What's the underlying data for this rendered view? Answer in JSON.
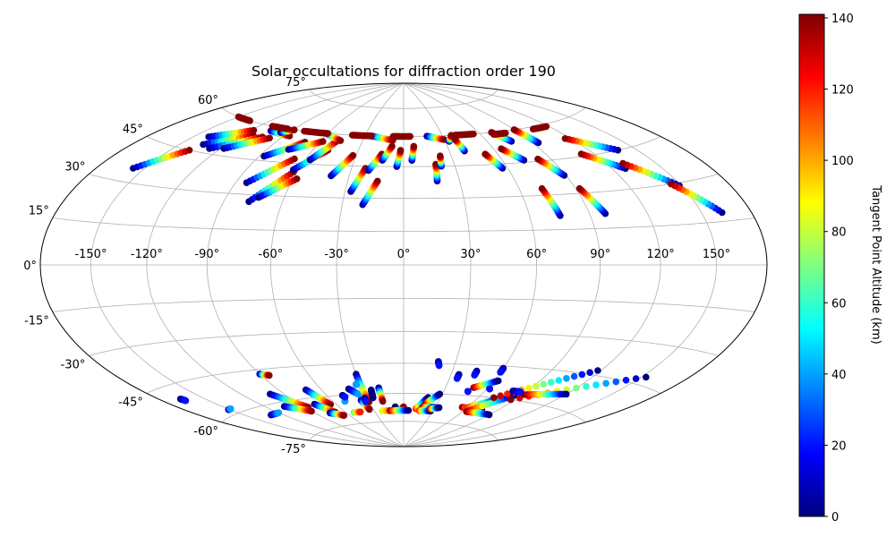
{
  "chart_data": {
    "type": "scatter",
    "projection": "hammer",
    "title": "Solar occultations for diffraction order 190",
    "grid": true,
    "x_ticks": [
      -150,
      -120,
      -90,
      -60,
      -30,
      0,
      30,
      60,
      90,
      120,
      150
    ],
    "x_tick_labels": [
      "-150°",
      "-120°",
      "-90°",
      "-60°",
      "-30°",
      "0°",
      "30°",
      "60°",
      "90°",
      "120°",
      "150°"
    ],
    "y_ticks": [
      75,
      60,
      45,
      30,
      15,
      0,
      -15,
      -30,
      -45,
      -60,
      -75
    ],
    "y_tick_labels": [
      "75°",
      "60°",
      "45°",
      "30°",
      "15°",
      "0°",
      "-15°",
      "-30°",
      "-45°",
      "-60°",
      "-75°"
    ],
    "colorbar": {
      "label": "Tangent Point Altitude (km)",
      "range": [
        0,
        141
      ],
      "ticks": [
        0,
        20,
        40,
        60,
        80,
        100,
        120,
        140
      ],
      "tick_labels": [
        "0",
        "20",
        "40",
        "60",
        "80",
        "100",
        "120",
        "140"
      ],
      "colormap": "jet"
    },
    "track_units": "lon_deg, lat_deg, altitude_km at each end",
    "tracks": [
      [
        -157,
        35,
        0,
        -138,
        45,
        140
      ],
      [
        -140,
        51,
        0,
        -118,
        57,
        140
      ],
      [
        -135,
        48,
        0,
        -112,
        55,
        140
      ],
      [
        -127,
        47,
        0,
        -104,
        55,
        140
      ],
      [
        -118,
        48,
        0,
        -98,
        55,
        140
      ],
      [
        -105,
        58,
        0,
        -86,
        57,
        140
      ],
      [
        -96,
        58,
        0,
        -89,
        60,
        140
      ],
      [
        -87,
        47,
        0,
        -70,
        55,
        140
      ],
      [
        -84,
        35,
        0,
        -67,
        47,
        140
      ],
      [
        -77,
        27,
        0,
        -62,
        41,
        140
      ],
      [
        -73,
        29,
        0,
        -58,
        38,
        140
      ],
      [
        -76,
        51,
        0,
        -58,
        56,
        140
      ],
      [
        -63,
        42,
        0,
        -50,
        52,
        140
      ],
      [
        -57,
        47,
        0,
        -48,
        57,
        140
      ],
      [
        -61,
        60,
        0,
        -46,
        57,
        140
      ],
      [
        -40,
        40,
        0,
        -32,
        50,
        140
      ],
      [
        -27,
        33,
        0,
        -22,
        44,
        140
      ],
      [
        -20,
        27,
        0,
        -14,
        38,
        140
      ],
      [
        -20,
        43,
        0,
        -14,
        51,
        140
      ],
      [
        -13,
        48,
        0,
        -8,
        55,
        140
      ],
      [
        -4,
        45,
        0,
        -2,
        53,
        140
      ],
      [
        5,
        48,
        0,
        7,
        55,
        140
      ],
      [
        18,
        38,
        0,
        19,
        46,
        140
      ],
      [
        22,
        45,
        0,
        23,
        50,
        140
      ],
      [
        -25,
        60,
        0,
        -8,
        58,
        140
      ],
      [
        18,
        60,
        0,
        30,
        58,
        140
      ],
      [
        33,
        57,
        0,
        37,
        60,
        140
      ],
      [
        40,
        52,
        0,
        38,
        58,
        140
      ],
      [
        57,
        43,
        0,
        52,
        50,
        140
      ],
      [
        73,
        46,
        0,
        65,
        52,
        140
      ],
      [
        75,
        21,
        0,
        72,
        33,
        140
      ],
      [
        77,
        55,
        0,
        70,
        60,
        140
      ],
      [
        89,
        38,
        0,
        82,
        46,
        140
      ],
      [
        98,
        21,
        0,
        92,
        32,
        140
      ],
      [
        94,
        53,
        0,
        90,
        60,
        140
      ],
      [
        128,
        38,
        0,
        112,
        46,
        140
      ],
      [
        149,
        29,
        0,
        130,
        40,
        140
      ],
      [
        162,
        18,
        0,
        145,
        30,
        140
      ],
      [
        138,
        45,
        0,
        116,
        53,
        140
      ],
      [
        -150,
        60,
        140,
        -135,
        60,
        140
      ],
      [
        -110,
        60,
        140,
        -95,
        60,
        140
      ],
      [
        -80,
        60,
        140,
        -60,
        60,
        140
      ],
      [
        -40,
        60,
        140,
        -25,
        60,
        140
      ],
      [
        -8,
        60,
        140,
        5,
        60,
        140
      ],
      [
        40,
        60,
        140,
        55,
        60,
        140
      ],
      [
        70,
        59,
        140,
        80,
        59,
        140
      ],
      [
        105,
        59,
        140,
        118,
        59,
        140
      ],
      [
        -166,
        -50,
        0,
        -165,
        -51,
        20
      ],
      [
        -151,
        -58,
        0,
        -148,
        -58,
        40
      ],
      [
        -130,
        -64,
        0,
        -120,
        -64,
        40
      ],
      [
        -90,
        -47,
        0,
        -85,
        -48,
        140
      ],
      [
        -100,
        -56,
        0,
        -87,
        -64,
        140
      ],
      [
        -105,
        -62,
        0,
        -90,
        -66,
        140
      ],
      [
        -71,
        -56,
        0,
        -65,
        -64,
        140
      ],
      [
        -78,
        -63,
        0,
        -70,
        -68,
        140
      ],
      [
        -76,
        -68,
        0,
        -66,
        -70,
        140
      ],
      [
        -50,
        -63,
        0,
        -50,
        -63,
        40
      ],
      [
        -52,
        -69,
        60,
        -45,
        -69,
        120
      ],
      [
        -48,
        -60,
        0,
        -47,
        -61,
        20
      ],
      [
        -40,
        -57,
        0,
        -35,
        -60,
        40
      ],
      [
        -36,
        -63,
        0,
        -34,
        -68,
        140
      ],
      [
        -30,
        -50,
        0,
        -30,
        -64,
        140
      ],
      [
        -33,
        -55,
        0,
        -33,
        -55,
        40
      ],
      [
        -32,
        -62,
        0,
        -33,
        -64,
        20
      ],
      [
        -25,
        -62,
        0,
        -24,
        -58,
        0
      ],
      [
        -18,
        -57,
        0,
        -18,
        -64,
        140
      ],
      [
        -22,
        -69,
        80,
        -10,
        -69,
        120
      ],
      [
        -8,
        -68,
        0,
        -8,
        -67,
        0
      ],
      [
        -4,
        -69,
        0,
        0,
        -67,
        140
      ],
      [
        -14,
        -69,
        140,
        5,
        -69,
        0
      ],
      [
        12,
        -68,
        120,
        20,
        -62,
        0
      ],
      [
        20,
        -65,
        140,
        28,
        -60,
        0
      ],
      [
        18,
        -67,
        140,
        30,
        -67,
        0
      ],
      [
        16,
        -69,
        120,
        28,
        -69,
        0
      ],
      [
        26,
        -68,
        140,
        34,
        -67,
        0
      ],
      [
        20,
        -44,
        0,
        21,
        -46,
        20
      ],
      [
        35,
        -50,
        0,
        35,
        -52,
        20
      ],
      [
        45,
        -48,
        0,
        45,
        -50,
        20
      ],
      [
        48,
        -58,
        0,
        48,
        -58,
        20
      ],
      [
        50,
        -56,
        140,
        63,
        -52,
        0
      ],
      [
        55,
        -66,
        140,
        75,
        -66,
        0
      ],
      [
        60,
        -66,
        120,
        78,
        -60,
        0
      ],
      [
        64,
        -68,
        140,
        85,
        -58,
        0
      ],
      [
        70,
        -68,
        140,
        82,
        -68,
        0
      ],
      [
        60,
        -46,
        0,
        60,
        -48,
        20
      ],
      [
        62,
        -56,
        0,
        62,
        -56,
        20
      ],
      [
        72,
        -60,
        140,
        118,
        -43,
        0
      ],
      [
        87,
        -60,
        140,
        153,
        -42,
        0
      ],
      [
        92,
        -57,
        140,
        120,
        -54,
        0
      ],
      [
        65,
        -68,
        140,
        90,
        -68,
        0
      ],
      [
        80,
        -56,
        0,
        86,
        -56,
        20
      ]
    ]
  }
}
